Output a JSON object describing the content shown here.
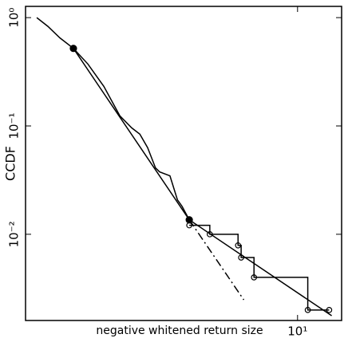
{
  "chart_data": {
    "type": "line",
    "x_label": "negative whitened return size",
    "y_label": "CCDF",
    "xscale": "log",
    "yscale": "log",
    "xlim": [
      0.49,
      16.3
    ],
    "ylim": [
      0.0016,
      1.27
    ],
    "xticks": [
      {
        "value": 10,
        "label": "10¹"
      }
    ],
    "yticks": [
      {
        "value": 1,
        "label": "10⁰"
      },
      {
        "value": 0.1,
        "label": "10⁻¹"
      },
      {
        "value": 0.01,
        "label": "10⁻²"
      }
    ],
    "series": [
      {
        "color": "#000000",
        "style": "solid",
        "marker": "none",
        "x": [
          0.555,
          0.628,
          0.717,
          0.833,
          0.978,
          1.167,
          1.394,
          1.59,
          1.74,
          1.897,
          2.07,
          2.166,
          2.43,
          2.64,
          2.78,
          3.01
        ],
        "values": [
          1.0,
          0.83,
          0.65,
          0.52,
          0.373,
          0.232,
          0.124,
          0.096,
          0.084,
          0.063,
          0.041,
          0.0377,
          0.0346,
          0.0208,
          0.0181,
          0.0136
        ]
      },
      {
        "color": "#000000",
        "style": "steps",
        "marker": "open",
        "x": [
          3.01,
          3.78,
          5.17,
          5.35,
          6.17,
          11.2,
          14.2
        ],
        "values": [
          0.0121,
          0.01,
          0.0079,
          0.0061,
          0.004,
          0.002,
          0.002
        ]
      },
      {
        "color": "#000000",
        "style": "solid",
        "marker": "none",
        "x": [
          0.833,
          3.01
        ],
        "values": [
          0.52,
          0.0136
        ]
      },
      {
        "color": "#000000",
        "style": "dashdot",
        "marker": "none",
        "x": [
          3.01,
          5.51
        ],
        "values": [
          0.0136,
          0.00248
        ]
      },
      {
        "color": "#000000",
        "style": "solid",
        "marker": "none",
        "x": [
          3.01,
          14.6
        ],
        "values": [
          0.0136,
          0.00177
        ]
      },
      {
        "color": "#000000",
        "style": "none",
        "marker": "filled",
        "x": [
          0.833,
          3.01
        ],
        "values": [
          0.52,
          0.0136
        ]
      }
    ]
  }
}
